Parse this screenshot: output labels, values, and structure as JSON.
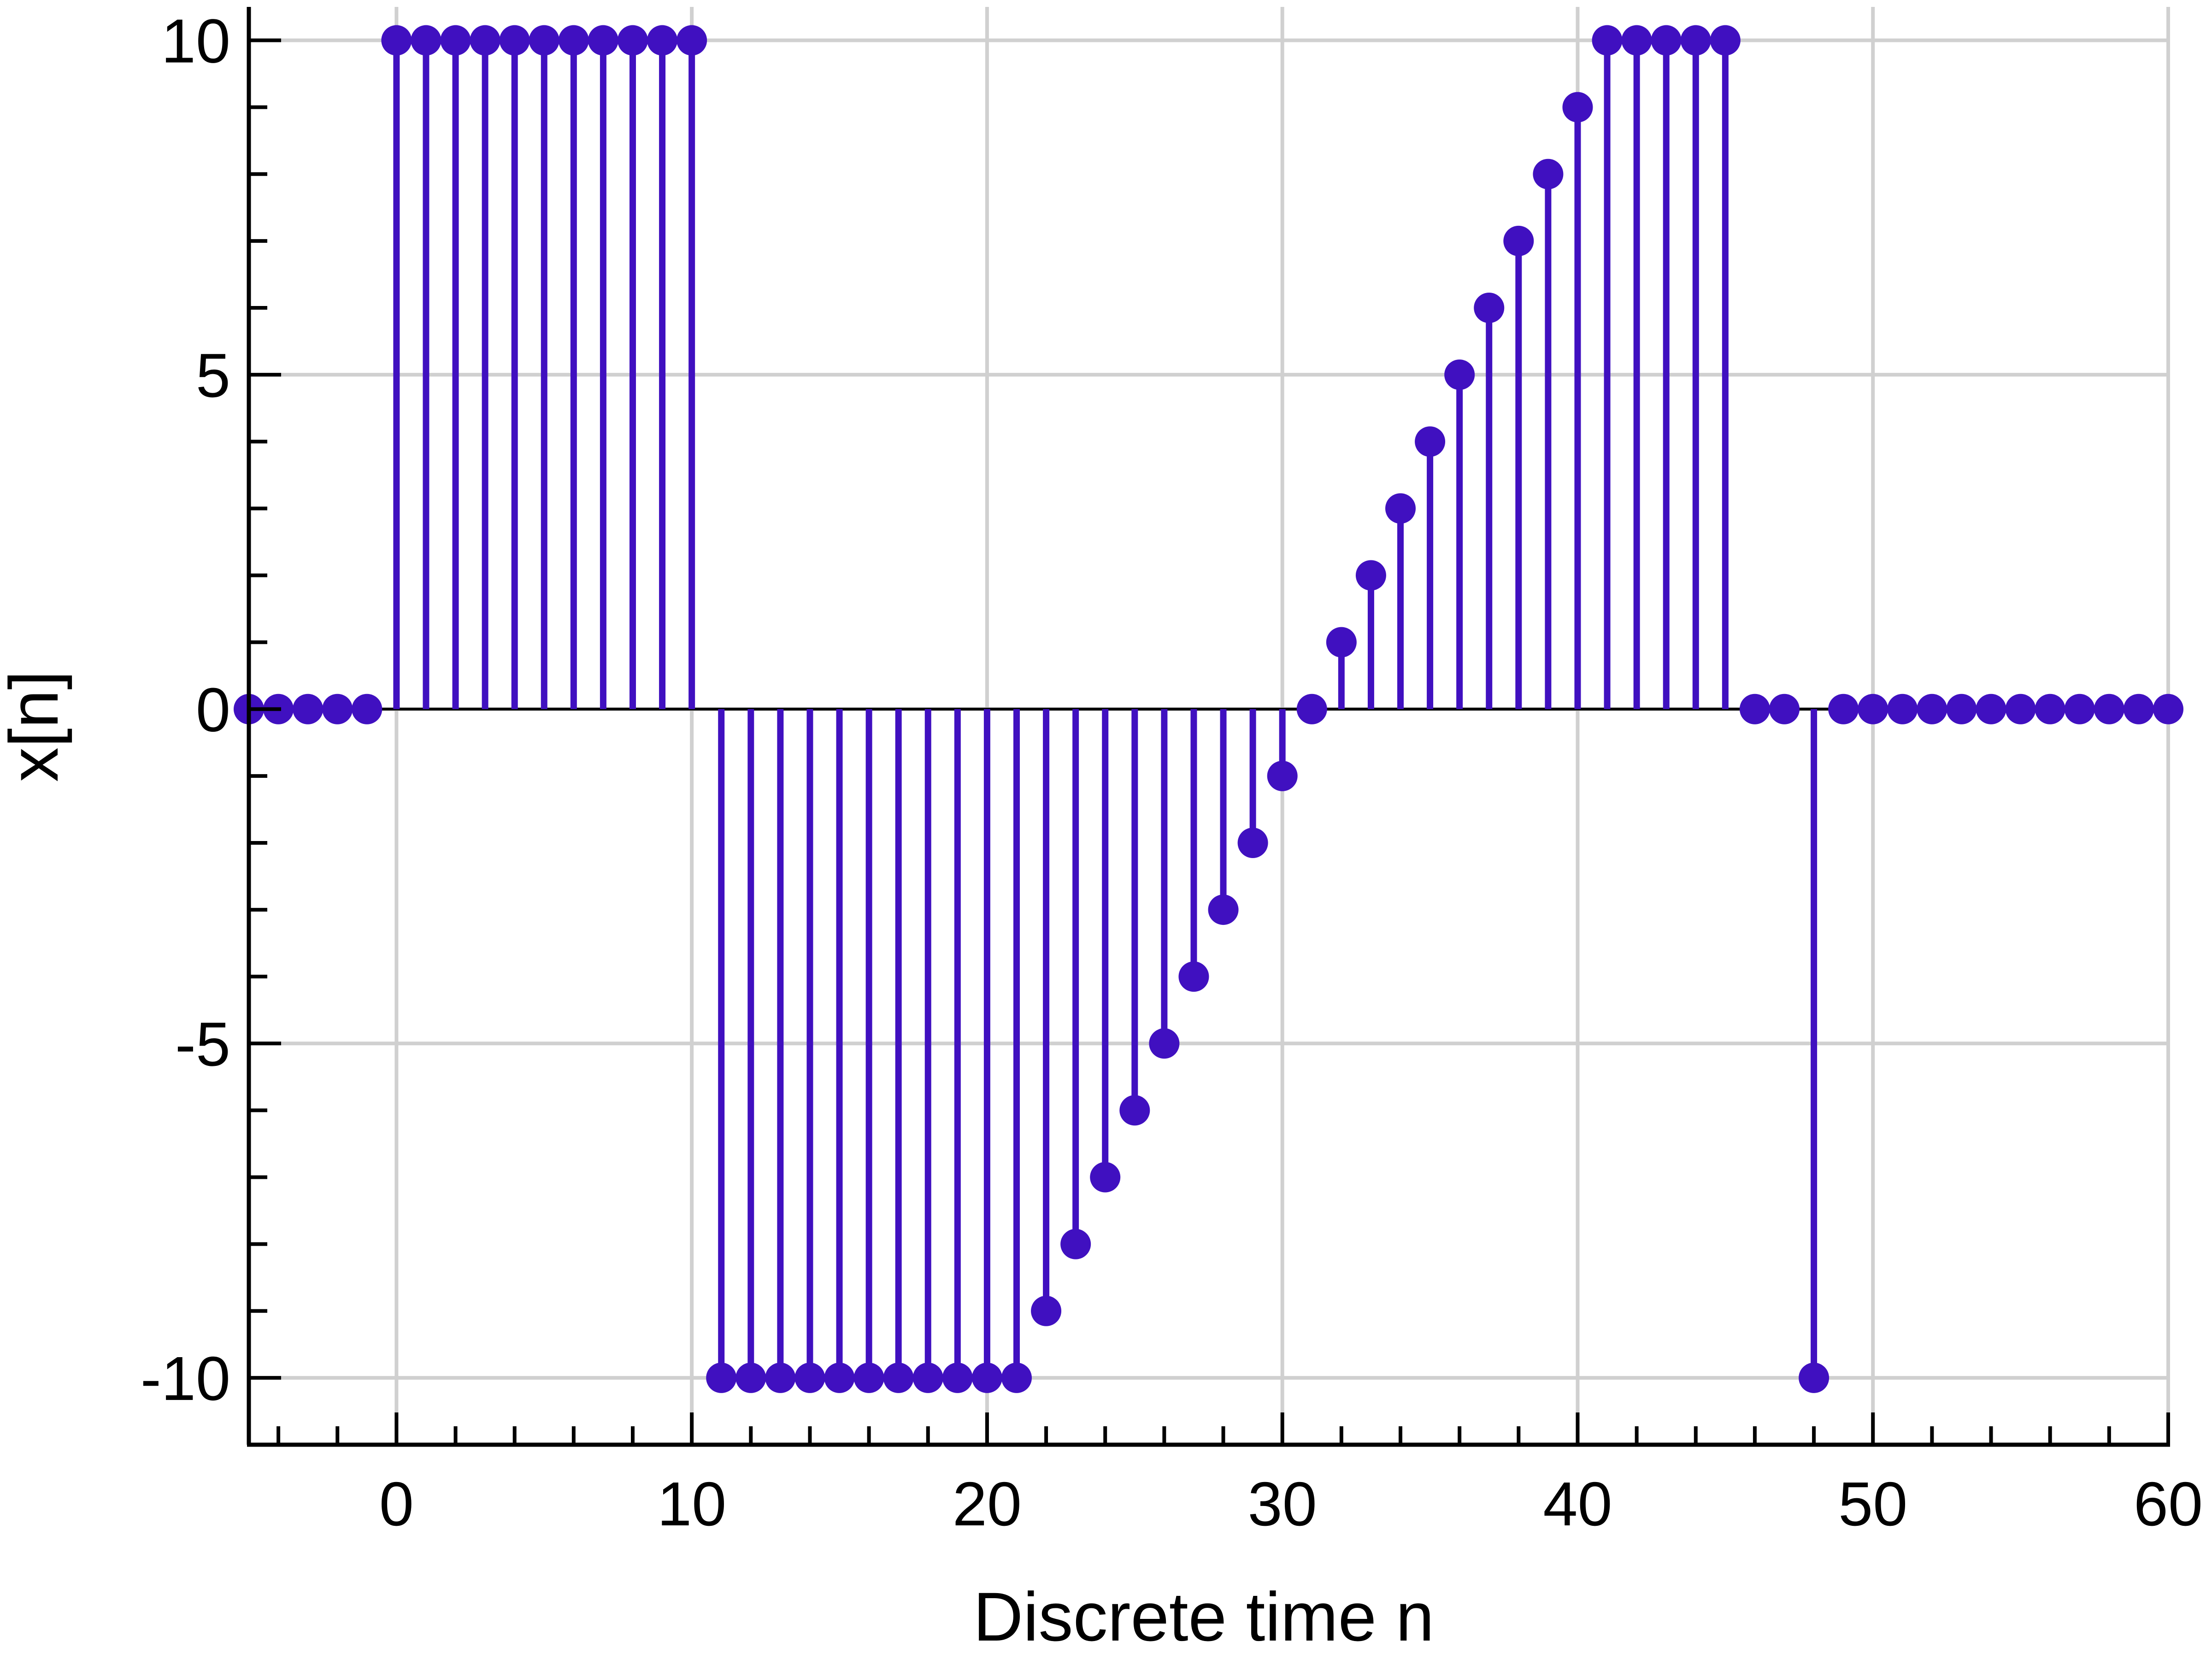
{
  "chart_data": {
    "type": "stem",
    "title": "",
    "xlabel": "Discrete time n",
    "ylabel": "x[n]",
    "xlim": [
      -5,
      60
    ],
    "ylim": [
      -11,
      10.5
    ],
    "x_ticks": [
      0,
      10,
      20,
      30,
      40,
      50,
      60
    ],
    "x_tick_labels": [
      "0",
      "10",
      "20",
      "30",
      "40",
      "50",
      "60"
    ],
    "y_ticks": [
      10,
      5,
      0,
      -5,
      -10
    ],
    "y_tick_labels": [
      "10",
      "5",
      "0",
      "-5",
      "-10"
    ],
    "grid": true,
    "x": [
      -5,
      -4,
      -3,
      -2,
      -1,
      0,
      1,
      2,
      3,
      4,
      5,
      6,
      7,
      8,
      9,
      10,
      11,
      12,
      13,
      14,
      15,
      16,
      17,
      18,
      19,
      20,
      21,
      22,
      23,
      24,
      25,
      26,
      27,
      28,
      29,
      30,
      31,
      32,
      33,
      34,
      35,
      36,
      37,
      38,
      39,
      40,
      41,
      42,
      43,
      44,
      45,
      46,
      47,
      48,
      49,
      50,
      51,
      52,
      53,
      54,
      55,
      56,
      57,
      58,
      59,
      60
    ],
    "values": [
      0,
      0,
      0,
      0,
      0,
      10,
      10,
      10,
      10,
      10,
      10,
      10,
      10,
      10,
      10,
      10,
      -10,
      -10,
      -10,
      -10,
      -10,
      -10,
      -10,
      -10,
      -10,
      -10,
      -10,
      -9,
      -8,
      -7,
      -6,
      -5,
      -4,
      -3,
      -2,
      -1,
      0,
      1,
      2,
      3,
      4,
      5,
      6,
      7,
      8,
      9,
      10,
      10,
      10,
      10,
      10,
      0,
      0,
      -10,
      0,
      0,
      0,
      0,
      0,
      0,
      0,
      0,
      0,
      0,
      0,
      0
    ],
    "colors": {
      "stem": "#4010C0",
      "grid": "#d0d0d0",
      "axis": "#000000"
    }
  }
}
